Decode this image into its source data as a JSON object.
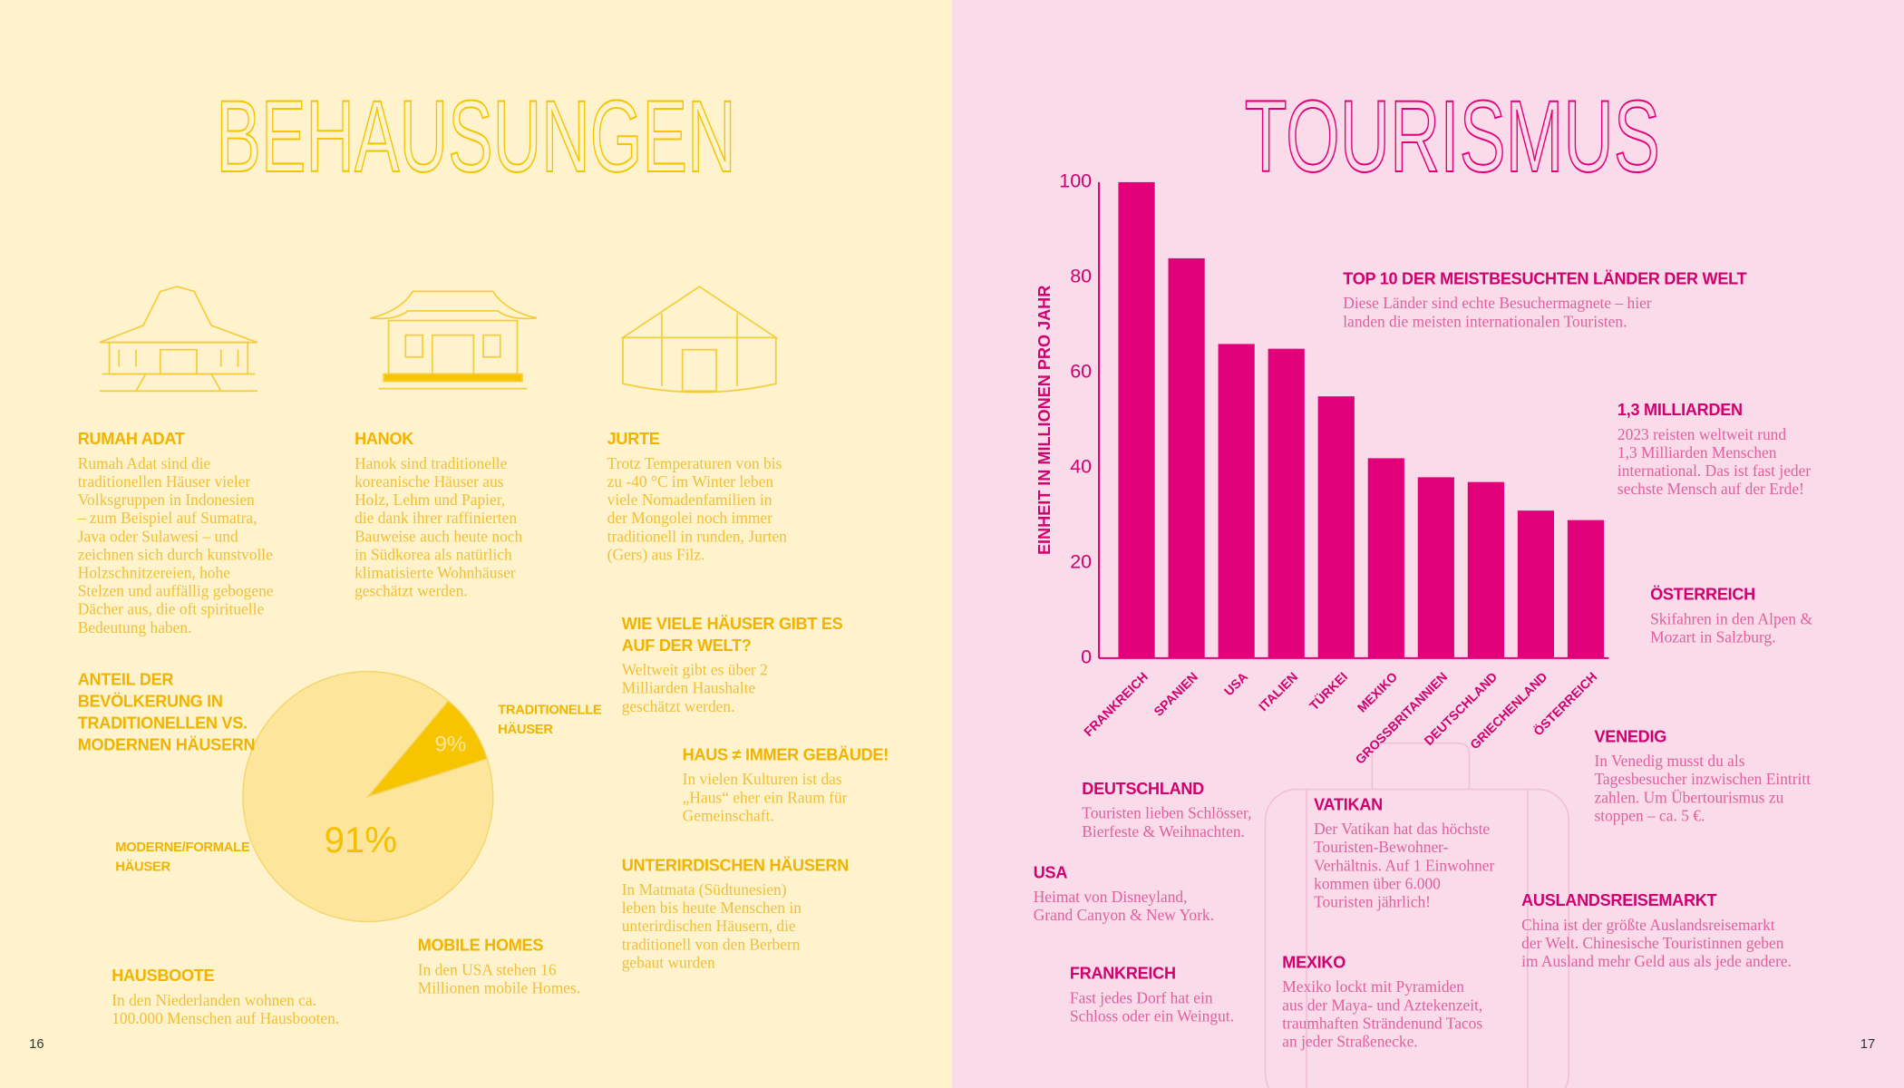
{
  "pages": [
    {
      "title": "BEHAUSUNGEN",
      "page_number": "16",
      "sections": [
        {
          "heading": [
            "RUMAH ADAT"
          ],
          "body": [
            "Rumah Adat sind die",
            "traditionellen Häuser vieler",
            "Volksgruppen in Indonesien",
            "– zum Beispiel auf Sumatra,",
            "Java oder Sulawesi – und",
            "zeichnen sich durch kunstvolle",
            "Holzschnitzereien, hohe",
            "Stelzen und auffällig gebogene",
            "Dächer aus, die oft spirituelle",
            "Bedeutung haben."
          ]
        },
        {
          "heading": [
            "HANOK"
          ],
          "body": [
            "Hanok sind traditionelle",
            "koreanische Häuser aus",
            "Holz, Lehm und Papier,",
            "die dank ihrer raffinierten",
            "Bauweise auch heute noch",
            "in Südkorea als natürlich",
            "klimatisierte Wohnhäuser",
            "geschätzt werden."
          ]
        },
        {
          "heading": [
            "JURTE"
          ],
          "body": [
            "Trotz Temperaturen von bis",
            "zu -40 °C im Winter leben",
            "viele Nomadenfamilien in",
            "der Mongolei noch immer",
            "traditionell in runden, Jurten",
            "(Gers) aus Filz."
          ]
        },
        {
          "heading": [
            "WIE VIELE HÄUSER GIBT ES",
            "AUF DER WELT?"
          ],
          "body": [
            "Weltweit gibt es über 2",
            "Milliarden Haushalte",
            "geschätzt werden."
          ]
        },
        {
          "heading": [
            "HAUS ≠ IMMER GEBÄUDE!"
          ],
          "body": [
            "In vielen Kulturen ist das",
            "„Haus“ eher ein Raum für",
            "Gemeinschaft."
          ]
        },
        {
          "heading": [
            "UNTERIRDISCHEN HÄUSERN"
          ],
          "body": [
            "In Matmata (Südtunesien)",
            "leben bis heute Menschen in",
            "unterirdischen Häusern, die",
            "traditionell von den Berbern",
            "gebaut wurden"
          ]
        },
        {
          "heading": [
            "MOBILE HOMES"
          ],
          "body": [
            "In den USA stehen 16",
            "Millionen mobile Homes."
          ]
        },
        {
          "heading": [
            "HAUSBOOTE"
          ],
          "body": [
            "In den Niederlanden wohnen ca.",
            "100.000 Menschen auf Hausbooten."
          ]
        }
      ]
    },
    {
      "title": "TOURISMUS",
      "page_number": "17",
      "sections": [
        {
          "heading": [
            "TOP 10 DER MEISTBESUCHTEN LÄNDER DER WELT"
          ],
          "body": [
            "Diese Länder sind echte Besuchermagnete – hier",
            "landen die meisten internationalen Touristen."
          ]
        },
        {
          "heading": [
            "1,3 MILLIARDEN"
          ],
          "body": [
            "2023 reisten weltweit rund",
            "1,3 Milliarden Menschen",
            "international. Das ist fast jeder",
            "sechste Mensch auf der Erde!"
          ]
        },
        {
          "heading": [
            "ÖSTERREICH"
          ],
          "body": [
            "Skifahren in den Alpen &",
            "Mozart in Salzburg."
          ]
        },
        {
          "heading": [
            "VENEDIG"
          ],
          "body": [
            "In Venedig musst du als",
            "Tagesbesucher inzwischen Eintritt",
            "zahlen. Um Übertourismus zu",
            "stoppen – ca. 5 €."
          ]
        },
        {
          "heading": [
            "DEUTSCHLAND"
          ],
          "body": [
            "Touristen lieben Schlösser,",
            "Bierfeste & Weihnachten."
          ]
        },
        {
          "heading": [
            "VATIKAN"
          ],
          "body": [
            "Der Vatikan hat das höchste",
            "Touristen-Bewohner-",
            "Verhältnis. Auf 1 Einwohner",
            "kommen über 6.000",
            "Touristen jährlich!"
          ]
        },
        {
          "heading": [
            "USA"
          ],
          "body": [
            "Heimat von Disneyland,",
            "Grand Canyon & New York."
          ]
        },
        {
          "heading": [
            "AUSLANDSREISEMARKT"
          ],
          "body": [
            "China ist der größte Auslandsreisemarkt",
            "der Welt. Chinesische Touristinnen geben",
            "im Ausland mehr Geld aus als jede andere."
          ]
        },
        {
          "heading": [
            "FRANKREICH"
          ],
          "body": [
            "Fast jedes Dorf hat ein",
            "Schloss oder ein Weingut."
          ]
        },
        {
          "heading": [
            "MEXIKO"
          ],
          "body": [
            "Mexiko lockt mit Pyramiden",
            "aus der Maya- und Aztekenzeit,",
            "traumhaften Strändenund Tacos",
            "an jeder Straßenecke."
          ]
        }
      ]
    }
  ],
  "chart_data": [
    {
      "type": "pie",
      "title": [
        "ANTEIL DER",
        "BEVÖLKERUNG IN",
        "TRADITIONELLEN VS.",
        "MODERNEN HÄUSERN"
      ],
      "categories": [
        "TRADITIONELLE HÄUSER",
        "MODERNE/FORMALE HÄUSER"
      ],
      "values": [
        9,
        91
      ],
      "value_labels": [
        "9%",
        "91%"
      ],
      "colors": [
        "#f7c400",
        "#fde59b"
      ]
    },
    {
      "type": "bar",
      "ylabel": "EINHEIT IN MILLIONEN PRO JAHR",
      "categories": [
        "FRANKREICH",
        "SPANIEN",
        "USA",
        "ITALIEN",
        "TÜRKEI",
        "MEXIKO",
        "GROSSBRITANNIEN",
        "DEUTSCHLAND",
        "GRIECHENLAND",
        "ÖSTERREICH"
      ],
      "values": [
        100,
        84,
        66,
        65,
        55,
        42,
        38,
        37,
        31,
        29
      ],
      "color": "#e2007a",
      "ylim": [
        0,
        100
      ],
      "yticks": [
        0,
        20,
        40,
        60,
        80,
        100
      ],
      "grid": false
    }
  ]
}
